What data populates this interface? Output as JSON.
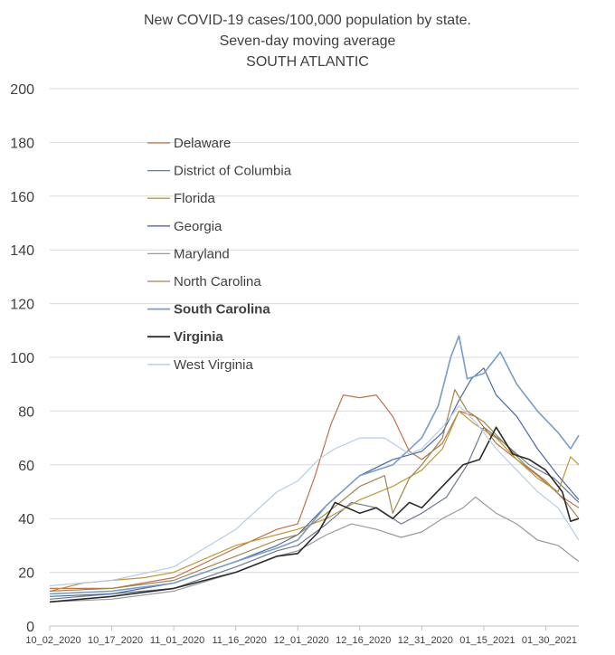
{
  "chart_data": {
    "type": "line",
    "title": "New COVID-19 cases/100,000 population by state.",
    "subtitle": "Seven-day moving average",
    "region": "SOUTH ATLANTIC",
    "xlabel": "",
    "ylabel": "",
    "ylim": [
      0,
      200
    ],
    "yticks": [
      0,
      20,
      40,
      60,
      80,
      100,
      120,
      140,
      160,
      180,
      200
    ],
    "x_tick_labels": [
      "10_02_2020",
      "10_17_2020",
      "11_01_2020",
      "11_16_2020",
      "12_01_2020",
      "12_16_2020",
      "12_31_2020",
      "01_15_2021",
      "01_30_2021"
    ],
    "grid": "horizontal",
    "legend_position": "upper-left",
    "x_start": "2020-10-02",
    "x_end": "2021-02-07",
    "series": [
      {
        "name": "Delaware",
        "color": "#c0704a",
        "bold": false,
        "points": [
          [
            "2020-10-02",
            14
          ],
          [
            "2020-10-17",
            14
          ],
          [
            "2020-11-01",
            18
          ],
          [
            "2020-11-16",
            29
          ],
          [
            "2020-11-26",
            36
          ],
          [
            "2020-12-01",
            38
          ],
          [
            "2020-12-05",
            55
          ],
          [
            "2020-12-09",
            75
          ],
          [
            "2020-12-12",
            86
          ],
          [
            "2020-12-16",
            85
          ],
          [
            "2020-12-20",
            86
          ],
          [
            "2020-12-24",
            78
          ],
          [
            "2020-12-28",
            65
          ],
          [
            "2020-12-31",
            62
          ],
          [
            "2021-01-05",
            68
          ],
          [
            "2021-01-09",
            80
          ],
          [
            "2021-01-13",
            78
          ],
          [
            "2021-01-18",
            68
          ],
          [
            "2021-01-23",
            62
          ],
          [
            "2021-01-28",
            56
          ],
          [
            "2021-02-03",
            48
          ],
          [
            "2021-02-07",
            44
          ]
        ]
      },
      {
        "name": "District of Columbia",
        "color": "#6d7a8f",
        "bold": false,
        "points": [
          [
            "2020-10-02",
            10
          ],
          [
            "2020-10-17",
            12
          ],
          [
            "2020-11-01",
            14
          ],
          [
            "2020-11-16",
            22
          ],
          [
            "2020-11-26",
            28
          ],
          [
            "2020-12-01",
            30
          ],
          [
            "2020-12-08",
            38
          ],
          [
            "2020-12-14",
            46
          ],
          [
            "2020-12-20",
            44
          ],
          [
            "2020-12-26",
            38
          ],
          [
            "2020-12-31",
            42
          ],
          [
            "2021-01-06",
            48
          ],
          [
            "2021-01-11",
            60
          ],
          [
            "2021-01-15",
            74
          ],
          [
            "2021-01-20",
            68
          ],
          [
            "2021-01-26",
            60
          ],
          [
            "2021-02-01",
            55
          ],
          [
            "2021-02-07",
            46
          ]
        ]
      },
      {
        "name": "Florida",
        "color": "#b89b3a",
        "bold": false,
        "points": [
          [
            "2020-10-02",
            13
          ],
          [
            "2020-10-10",
            16
          ],
          [
            "2020-10-17",
            17
          ],
          [
            "2020-10-25",
            18
          ],
          [
            "2020-11-01",
            20
          ],
          [
            "2020-11-16",
            30
          ],
          [
            "2020-11-26",
            34
          ],
          [
            "2020-12-01",
            36
          ],
          [
            "2020-12-08",
            40
          ],
          [
            "2020-12-16",
            47
          ],
          [
            "2020-12-24",
            52
          ],
          [
            "2020-12-31",
            58
          ],
          [
            "2021-01-05",
            66
          ],
          [
            "2021-01-09",
            80
          ],
          [
            "2021-01-13",
            75
          ],
          [
            "2021-01-18",
            70
          ],
          [
            "2021-01-23",
            62
          ],
          [
            "2021-01-28",
            55
          ],
          [
            "2021-02-02",
            50
          ],
          [
            "2021-02-05",
            63
          ],
          [
            "2021-02-07",
            60
          ]
        ]
      },
      {
        "name": "Georgia",
        "color": "#4a6aa0",
        "bold": false,
        "points": [
          [
            "2020-10-02",
            11
          ],
          [
            "2020-10-17",
            12
          ],
          [
            "2020-11-01",
            16
          ],
          [
            "2020-11-16",
            24
          ],
          [
            "2020-11-26",
            30
          ],
          [
            "2020-12-01",
            34
          ],
          [
            "2020-12-08",
            45
          ],
          [
            "2020-12-16",
            56
          ],
          [
            "2020-12-24",
            62
          ],
          [
            "2020-12-31",
            65
          ],
          [
            "2021-01-05",
            72
          ],
          [
            "2021-01-09",
            84
          ],
          [
            "2021-01-12",
            92
          ],
          [
            "2021-01-15",
            96
          ],
          [
            "2021-01-18",
            86
          ],
          [
            "2021-01-23",
            78
          ],
          [
            "2021-01-28",
            66
          ],
          [
            "2021-02-02",
            56
          ],
          [
            "2021-02-07",
            47
          ]
        ]
      },
      {
        "name": "Maryland",
        "color": "#9a9a9a",
        "bold": false,
        "points": [
          [
            "2020-10-02",
            9
          ],
          [
            "2020-10-17",
            10
          ],
          [
            "2020-11-01",
            13
          ],
          [
            "2020-11-16",
            20
          ],
          [
            "2020-11-26",
            26
          ],
          [
            "2020-12-01",
            28
          ],
          [
            "2020-12-08",
            34
          ],
          [
            "2020-12-14",
            38
          ],
          [
            "2020-12-20",
            36
          ],
          [
            "2020-12-26",
            33
          ],
          [
            "2020-12-31",
            35
          ],
          [
            "2021-01-05",
            40
          ],
          [
            "2021-01-10",
            44
          ],
          [
            "2021-01-13",
            48
          ],
          [
            "2021-01-18",
            42
          ],
          [
            "2021-01-23",
            38
          ],
          [
            "2021-01-28",
            32
          ],
          [
            "2021-02-02",
            30
          ],
          [
            "2021-02-07",
            24
          ]
        ]
      },
      {
        "name": "North Carolina",
        "color": "#a08550",
        "bold": false,
        "points": [
          [
            "2020-10-02",
            13
          ],
          [
            "2020-10-17",
            14
          ],
          [
            "2020-11-01",
            17
          ],
          [
            "2020-11-16",
            26
          ],
          [
            "2020-11-26",
            32
          ],
          [
            "2020-12-01",
            34
          ],
          [
            "2020-12-08",
            42
          ],
          [
            "2020-12-16",
            52
          ],
          [
            "2020-12-22",
            56
          ],
          [
            "2020-12-24",
            42
          ],
          [
            "2020-12-28",
            55
          ],
          [
            "2020-12-31",
            60
          ],
          [
            "2021-01-05",
            70
          ],
          [
            "2021-01-08",
            88
          ],
          [
            "2021-01-11",
            80
          ],
          [
            "2021-01-15",
            76
          ],
          [
            "2021-01-20",
            68
          ],
          [
            "2021-01-25",
            60
          ],
          [
            "2021-01-30",
            54
          ],
          [
            "2021-02-04",
            46
          ],
          [
            "2021-02-07",
            40
          ]
        ]
      },
      {
        "name": "South Carolina",
        "color": "#7a9cc8",
        "bold": true,
        "points": [
          [
            "2020-10-02",
            12
          ],
          [
            "2020-10-17",
            13
          ],
          [
            "2020-11-01",
            16
          ],
          [
            "2020-11-16",
            24
          ],
          [
            "2020-11-26",
            29
          ],
          [
            "2020-12-01",
            32
          ],
          [
            "2020-12-08",
            45
          ],
          [
            "2020-12-16",
            56
          ],
          [
            "2020-12-24",
            60
          ],
          [
            "2020-12-31",
            70
          ],
          [
            "2021-01-04",
            82
          ],
          [
            "2021-01-07",
            100
          ],
          [
            "2021-01-09",
            108
          ],
          [
            "2021-01-11",
            92
          ],
          [
            "2021-01-15",
            94
          ],
          [
            "2021-01-19",
            102
          ],
          [
            "2021-01-23",
            90
          ],
          [
            "2021-01-28",
            80
          ],
          [
            "2021-02-02",
            72
          ],
          [
            "2021-02-05",
            66
          ],
          [
            "2021-02-07",
            71
          ]
        ]
      },
      {
        "name": "Virginia",
        "color": "#2b2b2b",
        "bold": true,
        "points": [
          [
            "2020-10-02",
            9
          ],
          [
            "2020-10-17",
            11
          ],
          [
            "2020-11-01",
            14
          ],
          [
            "2020-11-16",
            20
          ],
          [
            "2020-11-26",
            26
          ],
          [
            "2020-12-01",
            27
          ],
          [
            "2020-12-06",
            35
          ],
          [
            "2020-12-10",
            46
          ],
          [
            "2020-12-16",
            42
          ],
          [
            "2020-12-20",
            44
          ],
          [
            "2020-12-24",
            40
          ],
          [
            "2020-12-28",
            46
          ],
          [
            "2020-12-31",
            44
          ],
          [
            "2021-01-05",
            52
          ],
          [
            "2021-01-10",
            60
          ],
          [
            "2021-01-14",
            62
          ],
          [
            "2021-01-18",
            74
          ],
          [
            "2021-01-22",
            64
          ],
          [
            "2021-01-26",
            62
          ],
          [
            "2021-01-30",
            58
          ],
          [
            "2021-02-03",
            50
          ],
          [
            "2021-02-05",
            39
          ],
          [
            "2021-02-07",
            40
          ]
        ]
      },
      {
        "name": "West Virginia",
        "color": "#b8cce4",
        "bold": false,
        "points": [
          [
            "2020-10-02",
            15
          ],
          [
            "2020-10-17",
            17
          ],
          [
            "2020-11-01",
            22
          ],
          [
            "2020-11-16",
            36
          ],
          [
            "2020-11-26",
            50
          ],
          [
            "2020-12-01",
            54
          ],
          [
            "2020-12-06",
            62
          ],
          [
            "2020-12-10",
            66
          ],
          [
            "2020-12-16",
            70
          ],
          [
            "2020-12-22",
            70
          ],
          [
            "2020-12-28",
            64
          ],
          [
            "2020-12-31",
            66
          ],
          [
            "2021-01-05",
            74
          ],
          [
            "2021-01-09",
            82
          ],
          [
            "2021-01-13",
            76
          ],
          [
            "2021-01-18",
            66
          ],
          [
            "2021-01-23",
            58
          ],
          [
            "2021-01-28",
            50
          ],
          [
            "2021-02-02",
            44
          ],
          [
            "2021-02-07",
            32
          ]
        ]
      }
    ]
  }
}
